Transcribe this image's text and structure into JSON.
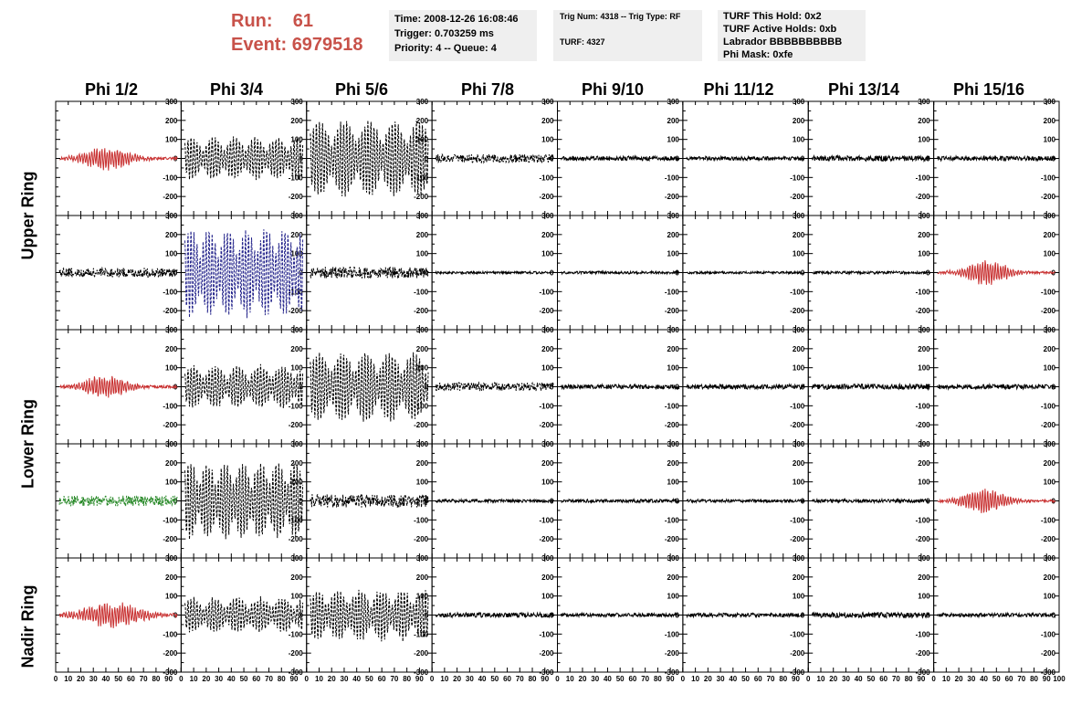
{
  "header": {
    "run_label": "Run:",
    "run_value": "61",
    "event_label": "Event:",
    "event_value": "6979518"
  },
  "info_time": {
    "time": "Time: 2008-12-26 16:08:46",
    "trigger": "Trigger: 0.703259 ms",
    "priority": "Priority: 4 -- Queue: 4"
  },
  "info_trig": {
    "trig": "Trig Num: 4318 -- Trig Type: RF",
    "turf": "TURF: 4327"
  },
  "info_turf": {
    "hold": "TURF This Hold: 0x2",
    "active": "TURF Active Holds: 0xb",
    "labrador": "Labrador BBBBBBBBBB",
    "mask": "Phi Mask: 0xfe"
  },
  "columns": [
    "Phi 1/2",
    "Phi 3/4",
    "Phi 5/6",
    "Phi 7/8",
    "Phi 9/10",
    "Phi 11/12",
    "Phi 13/14",
    "Phi 15/16"
  ],
  "ring_labels": [
    "Upper Ring",
    "Lower Ring",
    "Nadir Ring"
  ],
  "chart_data": {
    "type": "line",
    "xlim": [
      0,
      100
    ],
    "ylim": [
      -300,
      300
    ],
    "x_ticks": [
      0,
      10,
      20,
      30,
      40,
      50,
      60,
      70,
      80,
      90,
      100
    ],
    "x_tick_labels": [
      "0",
      "10",
      "20",
      "30",
      "40",
      "50",
      "60",
      "70",
      "80",
      "90",
      "100"
    ],
    "y_ticks": [
      -300,
      -200,
      -100,
      0,
      100,
      200,
      300
    ],
    "y_tick_labels": [
      "-300",
      "-200",
      "-100",
      "0",
      "100",
      "200",
      "300"
    ],
    "colors": {
      "red": "#c83030",
      "black": "#000000",
      "blue": "#22228a",
      "green": "#2a8a2a"
    },
    "panel_rows": 5,
    "panel_cols": 8,
    "panels": [
      [
        {
          "color": "red",
          "style": "solid",
          "kind": "pulse",
          "amp": 50,
          "noise": 12,
          "center": 40,
          "width": 22,
          "seed": 11
        },
        {
          "color": "black",
          "style": "dashed",
          "kind": "sine",
          "amp": 110,
          "period": 17,
          "noise": 8,
          "seed": 12
        },
        {
          "color": "black",
          "style": "dashed",
          "kind": "sine",
          "amp": 200,
          "period": 20,
          "noise": 10,
          "seed": 13
        },
        {
          "color": "black",
          "style": "dashed",
          "kind": "noise",
          "amp": 22,
          "noise": 22,
          "seed": 14
        },
        {
          "color": "black",
          "style": "solid",
          "kind": "noise",
          "amp": 12,
          "noise": 12,
          "seed": 15
        },
        {
          "color": "black",
          "style": "solid",
          "kind": "noise",
          "amp": 10,
          "noise": 10,
          "seed": 16
        },
        {
          "color": "black",
          "style": "solid",
          "kind": "noise",
          "amp": 14,
          "noise": 14,
          "seed": 17
        },
        {
          "color": "black",
          "style": "solid",
          "kind": "noise",
          "amp": 12,
          "noise": 12,
          "seed": 18
        }
      ],
      [
        {
          "color": "black",
          "style": "dashed",
          "kind": "noise",
          "amp": 25,
          "noise": 25,
          "seed": 21
        },
        {
          "color": "blue",
          "style": "dashed",
          "kind": "sine",
          "amp": 230,
          "period": 15,
          "noise": 10,
          "seed": 22
        },
        {
          "color": "black",
          "style": "dashed",
          "kind": "noise",
          "amp": 30,
          "noise": 30,
          "seed": 23
        },
        {
          "color": "black",
          "style": "solid",
          "kind": "noise",
          "amp": 6,
          "noise": 6,
          "seed": 24
        },
        {
          "color": "black",
          "style": "solid",
          "kind": "noise",
          "amp": 7,
          "noise": 7,
          "seed": 25
        },
        {
          "color": "black",
          "style": "solid",
          "kind": "noise",
          "amp": 6,
          "noise": 6,
          "seed": 26
        },
        {
          "color": "black",
          "style": "solid",
          "kind": "noise",
          "amp": 7,
          "noise": 7,
          "seed": 27
        },
        {
          "color": "red",
          "style": "solid",
          "kind": "pulse",
          "amp": 55,
          "noise": 10,
          "center": 42,
          "width": 20,
          "seed": 28
        }
      ],
      [
        {
          "color": "red",
          "style": "solid",
          "kind": "pulse",
          "amp": 50,
          "noise": 12,
          "center": 40,
          "width": 20,
          "seed": 31
        },
        {
          "color": "black",
          "style": "dashed",
          "kind": "sine",
          "amp": 110,
          "period": 18,
          "noise": 10,
          "seed": 32
        },
        {
          "color": "black",
          "style": "dashed",
          "kind": "sine",
          "amp": 180,
          "period": 19,
          "noise": 12,
          "seed": 33
        },
        {
          "color": "black",
          "style": "dashed",
          "kind": "noise",
          "amp": 22,
          "noise": 22,
          "seed": 34
        },
        {
          "color": "black",
          "style": "solid",
          "kind": "noise",
          "amp": 12,
          "noise": 12,
          "seed": 35
        },
        {
          "color": "black",
          "style": "solid",
          "kind": "noise",
          "amp": 12,
          "noise": 12,
          "seed": 36
        },
        {
          "color": "black",
          "style": "solid",
          "kind": "noise",
          "amp": 14,
          "noise": 14,
          "seed": 37
        },
        {
          "color": "black",
          "style": "solid",
          "kind": "noise",
          "amp": 12,
          "noise": 12,
          "seed": 38
        }
      ],
      [
        {
          "color": "green",
          "style": "dashed",
          "kind": "noise",
          "amp": 28,
          "noise": 28,
          "seed": 41
        },
        {
          "color": "black",
          "style": "dashed",
          "kind": "sine",
          "amp": 200,
          "period": 14,
          "noise": 12,
          "seed": 42
        },
        {
          "color": "black",
          "style": "dashed",
          "kind": "noise",
          "amp": 35,
          "noise": 35,
          "seed": 43
        },
        {
          "color": "black",
          "style": "solid",
          "kind": "noise",
          "amp": 8,
          "noise": 8,
          "seed": 44
        },
        {
          "color": "black",
          "style": "solid",
          "kind": "noise",
          "amp": 9,
          "noise": 9,
          "seed": 45
        },
        {
          "color": "black",
          "style": "solid",
          "kind": "noise",
          "amp": 8,
          "noise": 8,
          "seed": 46
        },
        {
          "color": "black",
          "style": "solid",
          "kind": "noise",
          "amp": 9,
          "noise": 9,
          "seed": 47
        },
        {
          "color": "red",
          "style": "solid",
          "kind": "pulse",
          "amp": 55,
          "noise": 10,
          "center": 40,
          "width": 20,
          "seed": 48
        }
      ],
      [
        {
          "color": "red",
          "style": "solid",
          "kind": "pulse",
          "amp": 55,
          "noise": 14,
          "center": 45,
          "width": 26,
          "seed": 51
        },
        {
          "color": "black",
          "style": "dashed",
          "kind": "sine",
          "amp": 90,
          "period": 18,
          "noise": 10,
          "seed": 52
        },
        {
          "color": "black",
          "style": "dashed",
          "kind": "sine",
          "amp": 130,
          "period": 17,
          "noise": 12,
          "seed": 53
        },
        {
          "color": "black",
          "style": "solid",
          "kind": "noise",
          "amp": 12,
          "noise": 12,
          "seed": 54
        },
        {
          "color": "black",
          "style": "solid",
          "kind": "noise",
          "amp": 10,
          "noise": 10,
          "seed": 55
        },
        {
          "color": "black",
          "style": "solid",
          "kind": "noise",
          "amp": 10,
          "noise": 10,
          "seed": 56
        },
        {
          "color": "black",
          "style": "solid",
          "kind": "noise",
          "amp": 14,
          "noise": 14,
          "seed": 57
        },
        {
          "color": "black",
          "style": "solid",
          "kind": "noise",
          "amp": 10,
          "noise": 10,
          "seed": 58
        }
      ]
    ]
  }
}
